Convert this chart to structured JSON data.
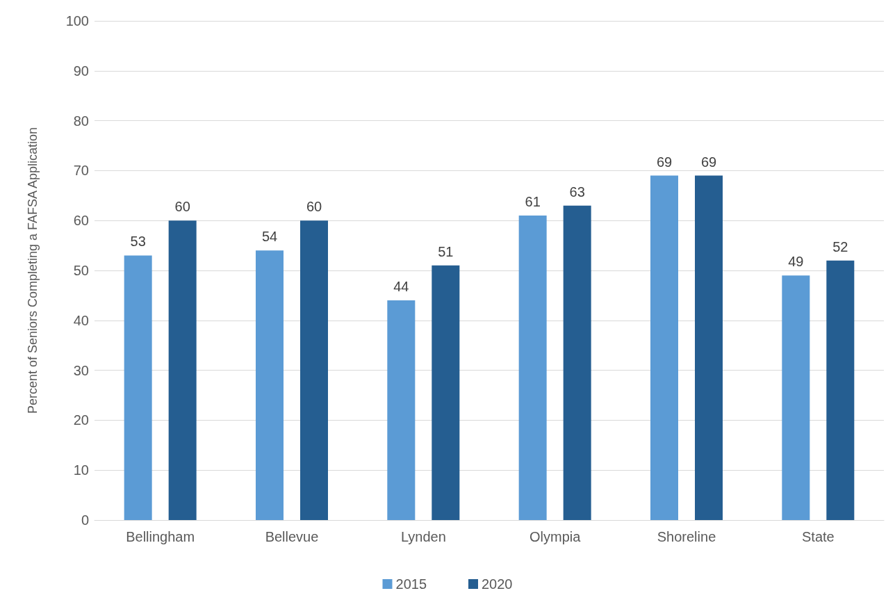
{
  "chart_data": {
    "type": "bar",
    "ylabel": "Percent of Seniors Completing a FAFSA Application",
    "categories": [
      "Bellingham",
      "Bellevue",
      "Lynden",
      "Olympia",
      "Shoreline",
      "State"
    ],
    "series": [
      {
        "name": "2015",
        "color": "#5b9bd5",
        "values": [
          53,
          54,
          44,
          61,
          69,
          49
        ]
      },
      {
        "name": "2020",
        "color": "#255e91",
        "values": [
          60,
          60,
          51,
          63,
          69,
          52
        ]
      }
    ],
    "ylim": [
      0,
      100
    ],
    "yticks": [
      0,
      10,
      20,
      30,
      40,
      50,
      60,
      70,
      80,
      90,
      100
    ],
    "grid": "y",
    "legend": "bottom",
    "data_labels": true
  }
}
